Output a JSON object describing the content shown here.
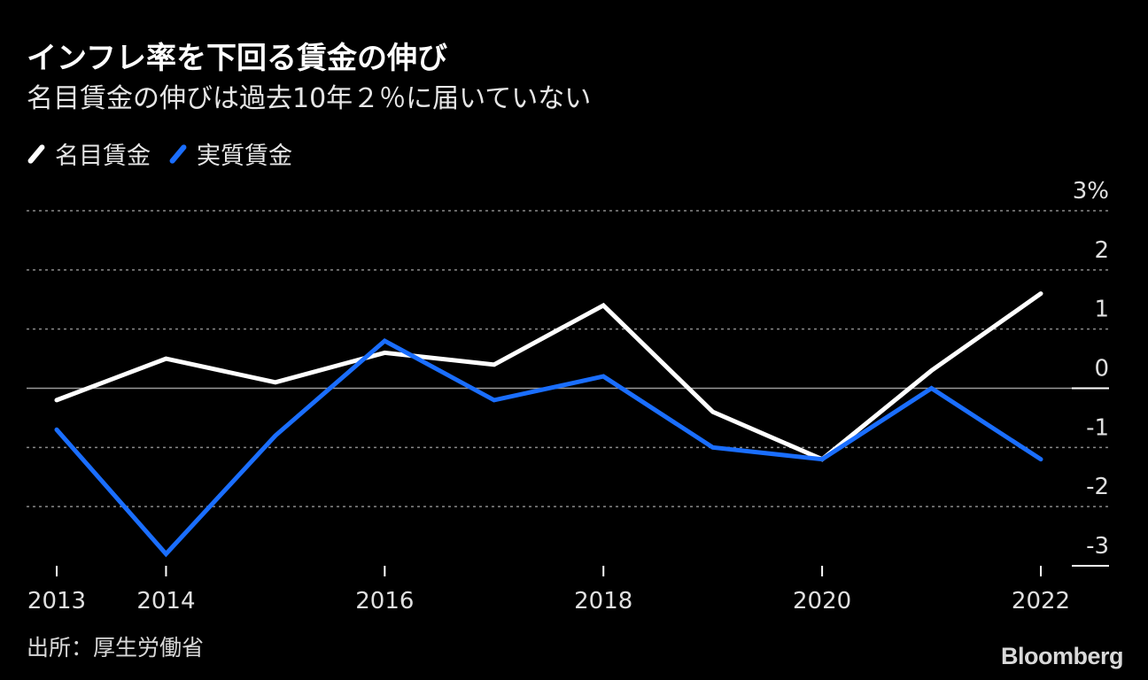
{
  "chart_data": {
    "type": "line",
    "title": "インフレ率を下回る賃金の伸び",
    "subtitle": "名目賃金の伸びは過去10年２％に届いていない",
    "x": [
      2013,
      2014,
      2015,
      2016,
      2017,
      2018,
      2019,
      2020,
      2021,
      2022
    ],
    "x_tick_labels": [
      "2013",
      "2014",
      "2016",
      "2018",
      "2020",
      "2022"
    ],
    "x_tick_values": [
      2013,
      2014,
      2016,
      2018,
      2020,
      2022
    ],
    "series": [
      {
        "name": "名目賃金",
        "color": "#ffffff",
        "values": [
          -0.2,
          0.5,
          0.1,
          0.6,
          0.4,
          1.4,
          -0.4,
          -1.2,
          0.3,
          1.6
        ]
      },
      {
        "name": "実質賃金",
        "color": "#1a6eff",
        "values": [
          -0.7,
          -2.8,
          -0.8,
          0.8,
          -0.2,
          0.2,
          -1.0,
          -1.2,
          0.0,
          -1.2
        ]
      }
    ],
    "y_ticks": [
      3,
      2,
      1,
      0,
      -1,
      -2,
      -3
    ],
    "y_tick_labels": [
      "3%",
      "2",
      "1",
      "0",
      "-1",
      "-2",
      "-3"
    ],
    "ylim": [
      -3,
      3
    ],
    "xlim": [
      2013,
      2022
    ],
    "grid": true,
    "legend": "top-left"
  },
  "source": "出所：厚生労働省",
  "brand": "Bloomberg",
  "colors": {
    "background": "#000000",
    "nominal": "#ffffff",
    "real": "#1a6eff",
    "grid": "#8a8a8a"
  }
}
